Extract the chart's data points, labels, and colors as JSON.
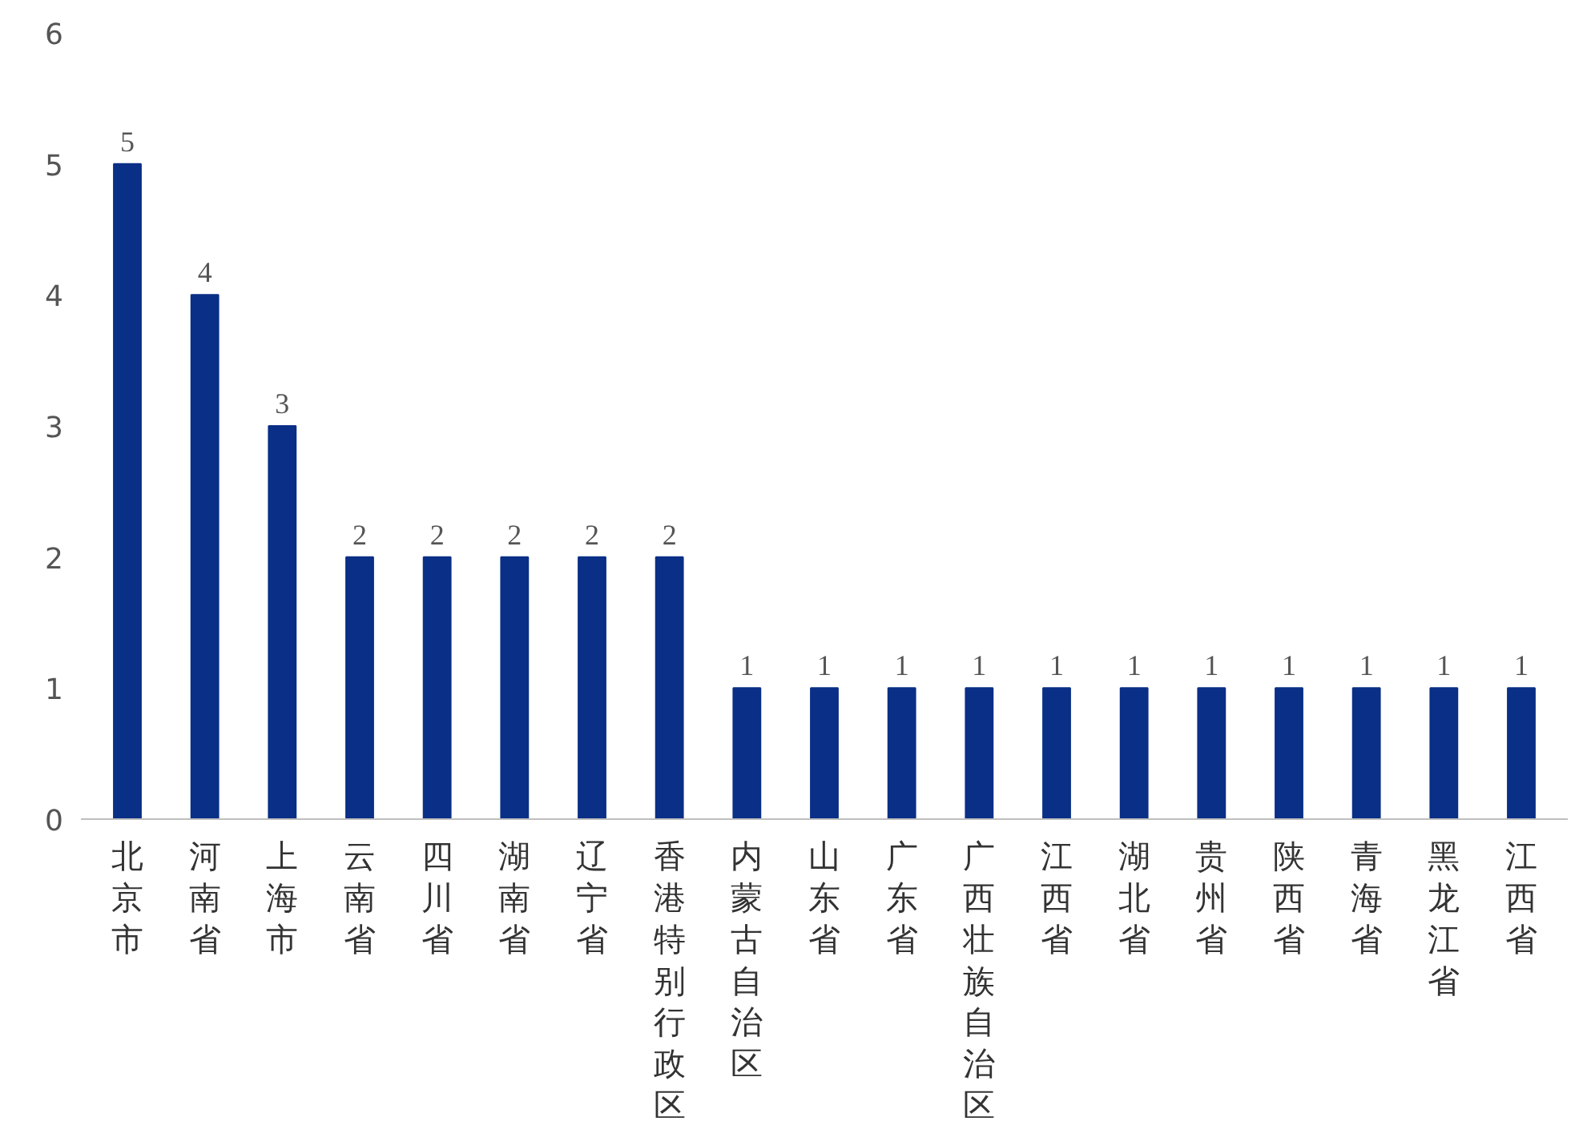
{
  "chart_data": {
    "type": "bar",
    "categories": [
      "北京市",
      "河南省",
      "上海市",
      "云南省",
      "四川省",
      "湖南省",
      "辽宁省",
      "香港特别行政区",
      "内蒙古自治区",
      "山东省",
      "广东省",
      "广西壮族自治区",
      "江西省",
      "湖北省",
      "贵州省",
      "陕西省",
      "青海省",
      "黑龙江省",
      "江西省"
    ],
    "values": [
      5,
      4,
      3,
      2,
      2,
      2,
      2,
      2,
      1,
      1,
      1,
      1,
      1,
      1,
      1,
      1,
      1,
      1,
      1
    ],
    "color": "#0a2f86",
    "ylim": [
      0,
      6
    ],
    "yticks": [
      0,
      1,
      2,
      3,
      4,
      5,
      6
    ],
    "data_labels": true,
    "grid": false
  }
}
